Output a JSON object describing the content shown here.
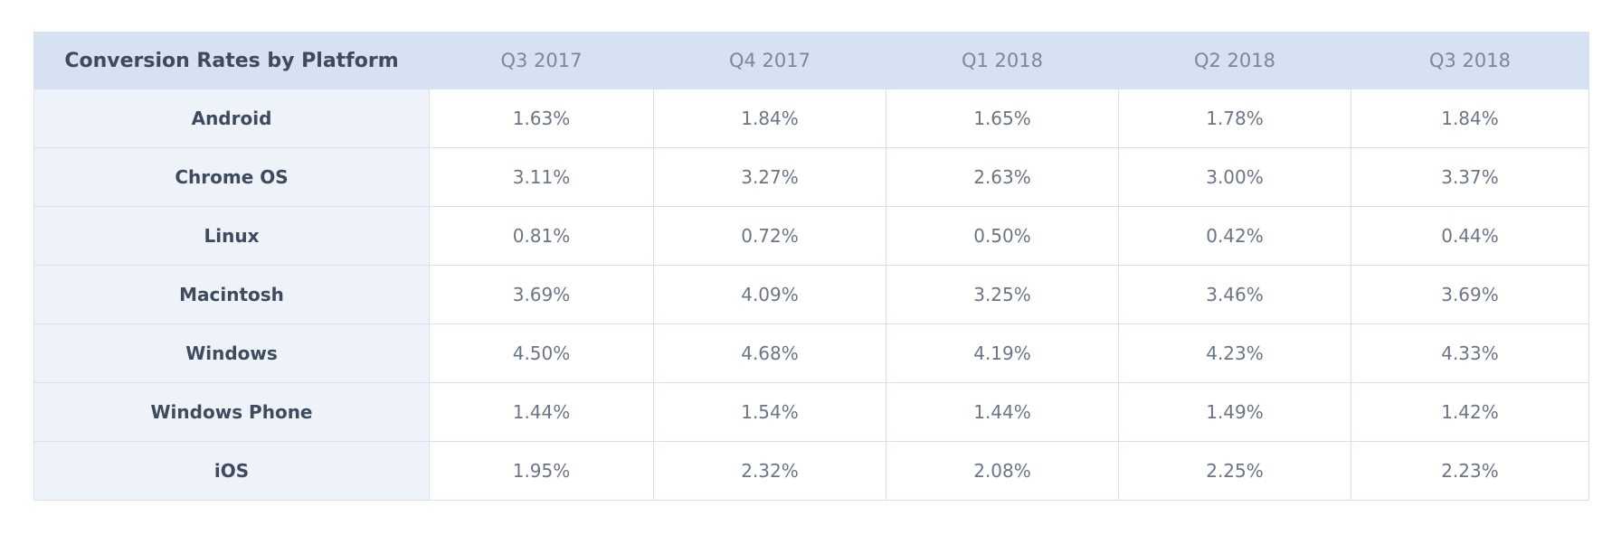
{
  "chart_data": {
    "type": "table",
    "title": "Conversion Rates by Platform",
    "columns": [
      "Q3 2017",
      "Q4 2017",
      "Q1 2018",
      "Q2 2018",
      "Q3 2018"
    ],
    "rows": [
      {
        "label": "Android",
        "values": [
          "1.63%",
          "1.84%",
          "1.65%",
          "1.78%",
          "1.84%"
        ]
      },
      {
        "label": "Chrome OS",
        "values": [
          "3.11%",
          "3.27%",
          "2.63%",
          "3.00%",
          "3.37%"
        ]
      },
      {
        "label": "Linux",
        "values": [
          "0.81%",
          "0.72%",
          "0.50%",
          "0.42%",
          "0.44%"
        ]
      },
      {
        "label": "Macintosh",
        "values": [
          "3.69%",
          "4.09%",
          "3.25%",
          "3.46%",
          "3.69%"
        ]
      },
      {
        "label": "Windows",
        "values": [
          "4.50%",
          "4.68%",
          "4.19%",
          "4.23%",
          "4.33%"
        ]
      },
      {
        "label": "Windows Phone",
        "values": [
          "1.44%",
          "1.54%",
          "1.44%",
          "1.49%",
          "1.42%"
        ]
      },
      {
        "label": "iOS",
        "values": [
          "1.95%",
          "2.32%",
          "2.08%",
          "2.25%",
          "2.23%"
        ]
      }
    ]
  }
}
